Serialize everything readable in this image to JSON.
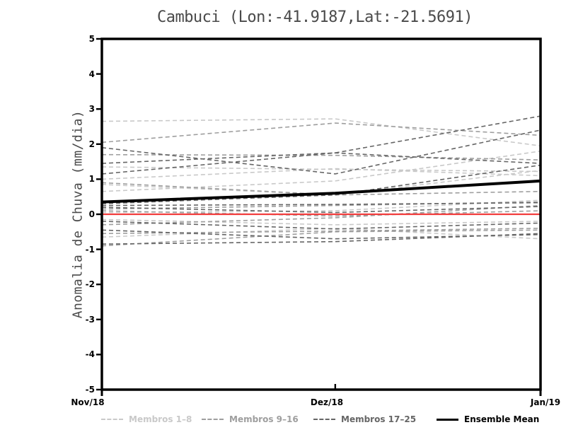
{
  "chart_data": {
    "type": "line",
    "title": "Cambuci (Lon:-41.9187,Lat:-21.5691)",
    "ylabel": "Anomalia de Chuva (mm/dia)",
    "xlabel": "",
    "categories": [
      "Nov/18",
      "Dez/18",
      "Jan/19"
    ],
    "x_positions": [
      0,
      0.532,
      1
    ],
    "ylim": [
      -5,
      5
    ],
    "yticks": [
      5,
      4,
      3,
      2,
      1,
      0,
      -1,
      -2,
      -3,
      -4,
      -5
    ],
    "grid": "off",
    "legend_position": "bottom",
    "zero_line": {
      "value": 0,
      "color": "#f23d3d"
    },
    "groups": [
      {
        "name": "Membros 1–8",
        "color": "#c9c9c9",
        "members": [
          [
            2.65,
            2.72,
            1.95
          ],
          [
            1.35,
            1.28,
            1.22
          ],
          [
            1.0,
            1.3,
            1.1
          ],
          [
            0.85,
            0.55,
            1.25
          ],
          [
            0.65,
            0.95,
            1.8
          ],
          [
            0.05,
            0.1,
            0.4
          ],
          [
            -0.15,
            -0.3,
            -0.2
          ],
          [
            -0.65,
            -0.4,
            -0.7
          ]
        ]
      },
      {
        "name": "Membros 9–16",
        "color": "#9e9e9e",
        "members": [
          [
            2.05,
            2.6,
            2.25
          ],
          [
            1.7,
            1.68,
            1.55
          ],
          [
            0.9,
            0.55,
            0.65
          ],
          [
            0.15,
            0.25,
            0.35
          ],
          [
            0.1,
            -0.05,
            0.1
          ],
          [
            -0.3,
            -0.1,
            0.25
          ],
          [
            -0.55,
            -0.48,
            -0.4
          ],
          [
            -0.9,
            -0.5,
            -0.45
          ]
        ]
      },
      {
        "name": "Membros 17–25",
        "color": "#666666",
        "members": [
          [
            1.9,
            1.15,
            2.4
          ],
          [
            1.45,
            1.75,
            2.8
          ],
          [
            1.15,
            1.75,
            1.45
          ],
          [
            0.3,
            0.55,
            1.4
          ],
          [
            0.25,
            0.28,
            0.33
          ],
          [
            0.2,
            0.05,
            0.22
          ],
          [
            -0.2,
            -0.42,
            -0.25
          ],
          [
            -0.45,
            -0.7,
            -0.58
          ],
          [
            -0.85,
            -0.78,
            -0.55
          ]
        ]
      }
    ],
    "mean": {
      "name": "Ensemble Mean",
      "color": "#000000",
      "values": [
        0.35,
        0.6,
        0.95
      ]
    },
    "axis_color": "#000000"
  },
  "legend_layout": {
    "item_lefts": [
      143,
      285,
      443,
      617
    ]
  }
}
